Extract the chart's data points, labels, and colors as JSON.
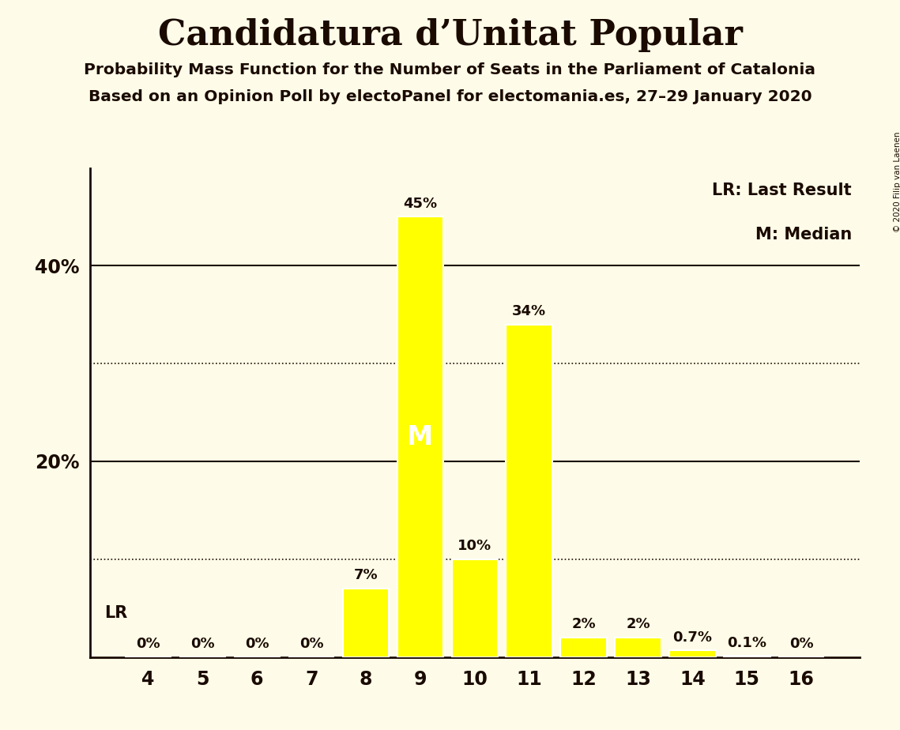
{
  "title": "Candidatura d’Unitat Popular",
  "subtitle1": "Probability Mass Function for the Number of Seats in the Parliament of Catalonia",
  "subtitle2": "Based on an Opinion Poll by electoPanel for electomania.es, 27–29 January 2020",
  "copyright": "© 2020 Filip van Laenen",
  "categories": [
    4,
    5,
    6,
    7,
    8,
    9,
    10,
    11,
    12,
    13,
    14,
    15,
    16
  ],
  "values": [
    0.0,
    0.0,
    0.0,
    0.0,
    7.0,
    45.0,
    10.0,
    34.0,
    2.0,
    2.0,
    0.7,
    0.1,
    0.0
  ],
  "bar_color": "#FFFF00",
  "bar_edge_color": "#FFFFFF",
  "background_color": "#FEFCE8",
  "text_color": "#1A0A00",
  "median_seat": 9,
  "last_result_seat": 4,
  "legend_lr": "LR: Last Result",
  "legend_m": "M: Median",
  "median_label": "M",
  "lr_label": "LR",
  "ylim": [
    0,
    50
  ],
  "dotted_lines": [
    10,
    30
  ],
  "solid_lines": [
    20,
    40
  ],
  "bar_labels": [
    "0%",
    "0%",
    "0%",
    "0%",
    "7%",
    "45%",
    "10%",
    "34%",
    "2%",
    "2%",
    "0.7%",
    "0.1%",
    "0%"
  ]
}
